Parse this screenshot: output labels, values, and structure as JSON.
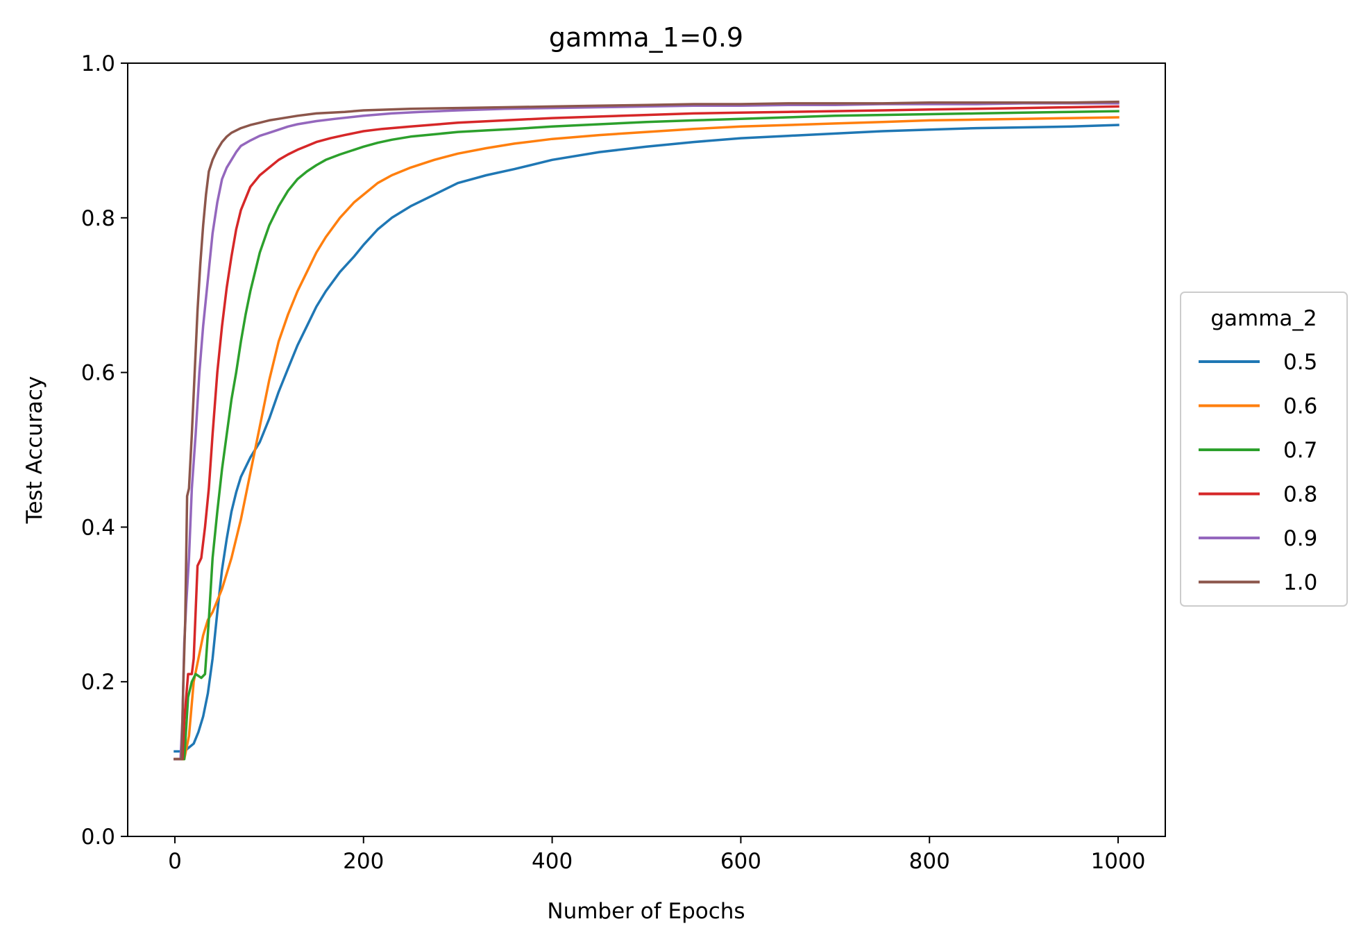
{
  "chart_data": {
    "type": "line",
    "title": "gamma_1=0.9",
    "xlabel": "Number of Epochs",
    "ylabel": "Test Accuracy",
    "xlim": [
      -50,
      1050
    ],
    "ylim": [
      0.0,
      1.0
    ],
    "xticks": [
      0,
      200,
      400,
      600,
      800,
      1000
    ],
    "xtick_labels": [
      "0",
      "200",
      "400",
      "600",
      "800",
      "1000"
    ],
    "yticks": [
      0.0,
      0.2,
      0.4,
      0.6,
      0.8,
      1.0
    ],
    "ytick_labels": [
      "0.0",
      "0.2",
      "0.4",
      "0.6",
      "0.8",
      "1.0"
    ],
    "grid": false,
    "legend": {
      "title": "gamma_2",
      "placement": "center-right-outside"
    },
    "series": [
      {
        "name": "0.5",
        "color": "#1f77b4",
        "x": [
          0,
          10,
          15,
          20,
          25,
          30,
          35,
          40,
          45,
          50,
          55,
          60,
          65,
          70,
          80,
          90,
          100,
          110,
          120,
          130,
          140,
          150,
          160,
          175,
          190,
          200,
          215,
          230,
          250,
          275,
          300,
          330,
          360,
          400,
          450,
          500,
          550,
          600,
          650,
          700,
          750,
          800,
          850,
          900,
          950,
          1000
        ],
        "y": [
          0.11,
          0.11,
          0.115,
          0.12,
          0.135,
          0.155,
          0.185,
          0.23,
          0.29,
          0.345,
          0.385,
          0.42,
          0.445,
          0.465,
          0.49,
          0.51,
          0.54,
          0.575,
          0.605,
          0.635,
          0.66,
          0.685,
          0.705,
          0.73,
          0.75,
          0.765,
          0.785,
          0.8,
          0.815,
          0.83,
          0.845,
          0.855,
          0.863,
          0.875,
          0.885,
          0.892,
          0.898,
          0.903,
          0.906,
          0.909,
          0.912,
          0.914,
          0.916,
          0.917,
          0.918,
          0.92
        ]
      },
      {
        "name": "0.6",
        "color": "#ff7f0e",
        "x": [
          0,
          10,
          15,
          20,
          25,
          30,
          35,
          40,
          50,
          60,
          70,
          80,
          90,
          100,
          110,
          120,
          130,
          140,
          150,
          160,
          175,
          190,
          200,
          215,
          230,
          250,
          275,
          300,
          330,
          360,
          400,
          450,
          500,
          550,
          600,
          650,
          700,
          750,
          800,
          850,
          900,
          950,
          1000
        ],
        "y": [
          0.1,
          0.1,
          0.13,
          0.2,
          0.23,
          0.26,
          0.28,
          0.29,
          0.32,
          0.36,
          0.41,
          0.47,
          0.53,
          0.59,
          0.64,
          0.675,
          0.705,
          0.73,
          0.755,
          0.775,
          0.8,
          0.82,
          0.83,
          0.845,
          0.855,
          0.865,
          0.875,
          0.883,
          0.89,
          0.896,
          0.902,
          0.907,
          0.911,
          0.915,
          0.918,
          0.92,
          0.922,
          0.924,
          0.926,
          0.927,
          0.928,
          0.929,
          0.93
        ]
      },
      {
        "name": "0.7",
        "color": "#2ca02c",
        "x": [
          0,
          10,
          14,
          18,
          22,
          28,
          32,
          36,
          40,
          45,
          50,
          55,
          60,
          65,
          70,
          75,
          80,
          90,
          100,
          110,
          120,
          130,
          140,
          150,
          160,
          175,
          190,
          200,
          215,
          230,
          250,
          275,
          300,
          330,
          360,
          400,
          450,
          500,
          550,
          600,
          650,
          700,
          750,
          800,
          850,
          900,
          950,
          1000
        ],
        "y": [
          0.1,
          0.1,
          0.18,
          0.2,
          0.21,
          0.205,
          0.21,
          0.28,
          0.36,
          0.42,
          0.475,
          0.52,
          0.565,
          0.6,
          0.64,
          0.675,
          0.705,
          0.755,
          0.79,
          0.815,
          0.835,
          0.85,
          0.86,
          0.868,
          0.875,
          0.882,
          0.888,
          0.892,
          0.897,
          0.901,
          0.905,
          0.908,
          0.911,
          0.913,
          0.915,
          0.918,
          0.921,
          0.924,
          0.926,
          0.928,
          0.93,
          0.932,
          0.933,
          0.934,
          0.935,
          0.936,
          0.937,
          0.938
        ]
      },
      {
        "name": "0.8",
        "color": "#d62728",
        "x": [
          0,
          8,
          10,
          14,
          18,
          20,
          24,
          28,
          32,
          36,
          40,
          45,
          50,
          55,
          60,
          65,
          70,
          80,
          90,
          100,
          110,
          120,
          130,
          140,
          150,
          165,
          180,
          200,
          220,
          250,
          280,
          300,
          350,
          400,
          450,
          500,
          550,
          600,
          650,
          700,
          750,
          800,
          850,
          900,
          950,
          1000
        ],
        "y": [
          0.1,
          0.1,
          0.15,
          0.21,
          0.21,
          0.23,
          0.35,
          0.36,
          0.4,
          0.45,
          0.52,
          0.6,
          0.66,
          0.71,
          0.75,
          0.785,
          0.81,
          0.84,
          0.855,
          0.865,
          0.875,
          0.882,
          0.888,
          0.893,
          0.898,
          0.903,
          0.907,
          0.912,
          0.915,
          0.918,
          0.921,
          0.923,
          0.926,
          0.929,
          0.931,
          0.933,
          0.935,
          0.936,
          0.937,
          0.938,
          0.939,
          0.94,
          0.941,
          0.942,
          0.943,
          0.944
        ]
      },
      {
        "name": "0.9",
        "color": "#9467bd",
        "x": [
          0,
          6,
          8,
          10,
          12,
          15,
          18,
          22,
          26,
          30,
          35,
          40,
          45,
          50,
          55,
          60,
          65,
          70,
          80,
          90,
          100,
          110,
          120,
          130,
          150,
          170,
          200,
          230,
          260,
          300,
          350,
          400,
          450,
          500,
          550,
          600,
          650,
          700,
          750,
          800,
          850,
          900,
          950,
          1000
        ],
        "y": [
          0.1,
          0.1,
          0.15,
          0.25,
          0.3,
          0.36,
          0.45,
          0.52,
          0.6,
          0.66,
          0.72,
          0.78,
          0.82,
          0.85,
          0.865,
          0.875,
          0.885,
          0.893,
          0.9,
          0.906,
          0.91,
          0.914,
          0.918,
          0.921,
          0.925,
          0.928,
          0.932,
          0.935,
          0.937,
          0.939,
          0.941,
          0.942,
          0.943,
          0.944,
          0.945,
          0.945,
          0.946,
          0.946,
          0.947,
          0.947,
          0.947,
          0.948,
          0.948,
          0.948
        ]
      },
      {
        "name": "1.0",
        "color": "#8c564b",
        "x": [
          0,
          7,
          9,
          11,
          13,
          15,
          18,
          21,
          24,
          27,
          30,
          33,
          36,
          40,
          45,
          50,
          55,
          60,
          70,
          80,
          90,
          100,
          110,
          130,
          150,
          180,
          200,
          250,
          300,
          350,
          400,
          450,
          500,
          550,
          600,
          650,
          700,
          750,
          800,
          850,
          900,
          950,
          1000
        ],
        "y": [
          0.1,
          0.1,
          0.2,
          0.28,
          0.44,
          0.45,
          0.52,
          0.6,
          0.68,
          0.74,
          0.79,
          0.83,
          0.86,
          0.875,
          0.888,
          0.898,
          0.905,
          0.91,
          0.916,
          0.92,
          0.923,
          0.926,
          0.928,
          0.932,
          0.935,
          0.937,
          0.939,
          0.941,
          0.942,
          0.943,
          0.944,
          0.945,
          0.946,
          0.947,
          0.947,
          0.948,
          0.948,
          0.948,
          0.949,
          0.949,
          0.949,
          0.949,
          0.95
        ]
      }
    ]
  }
}
